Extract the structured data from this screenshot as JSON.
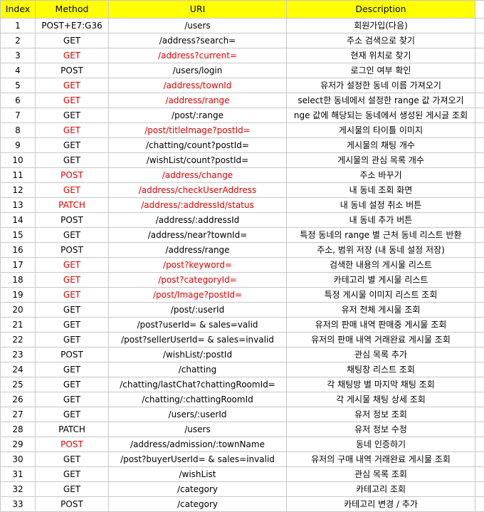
{
  "header": {
    "index": "Index",
    "method": "Method",
    "uri": "URI",
    "description": "Description"
  },
  "colors": {
    "header_bg": "#ffff00",
    "highlight_text": "#e00000",
    "grid": "#c8c8c8"
  },
  "rows": [
    {
      "index": "1",
      "method": "POST+E7:G36",
      "uri": "/users",
      "description": "회원가입(다음)",
      "red": false
    },
    {
      "index": "2",
      "method": "GET",
      "uri": "/address?search=",
      "description": "주소 검색으로 찾기",
      "red": false
    },
    {
      "index": "3",
      "method": "GET",
      "uri": "/address?current=",
      "description": "현재 위치로 찾기",
      "red": true
    },
    {
      "index": "4",
      "method": "POST",
      "uri": "/users/login",
      "description": "로그인 여부 확인",
      "red": false
    },
    {
      "index": "5",
      "method": "GET",
      "uri": "/address/townId",
      "description": "유저가 설정한 동네 이름 가져오기",
      "red": true
    },
    {
      "index": "6",
      "method": "GET",
      "uri": "/address/range",
      "description": "select한 동네에서 설정한 range 값 가져오기",
      "red": true
    },
    {
      "index": "7",
      "method": "GET",
      "uri": "/post/:range",
      "description": "nge 값에 해당되는 동네에서 생성된 게시글 조회",
      "red": false
    },
    {
      "index": "8",
      "method": "GET",
      "uri": "/post/titleImage?postId=",
      "description": "게시물의 타이틀 이미지",
      "red": true
    },
    {
      "index": "9",
      "method": "GET",
      "uri": "/chatting/count?postId=",
      "description": "게시물의 채팅 개수",
      "red": false
    },
    {
      "index": "10",
      "method": "GET",
      "uri": "/wishList/count?postId=",
      "description": "게시물의 관심 목록 개수",
      "red": false
    },
    {
      "index": "11",
      "method": "POST",
      "uri": "/address/change",
      "description": "주소 바꾸기",
      "red": true
    },
    {
      "index": "12",
      "method": "GET",
      "uri": "/address/checkUserAddress",
      "description": "내 동네 조회 화면",
      "red": true
    },
    {
      "index": "13",
      "method": "PATCH",
      "uri": "/address/:addressId/status",
      "description": "내 동네 설정 취소 버튼",
      "red": true
    },
    {
      "index": "14",
      "method": "POST",
      "uri": "/address/:addressId",
      "description": "내 동네 추가 버튼",
      "red": false
    },
    {
      "index": "15",
      "method": "GET",
      "uri": "/address/near?townId=",
      "description": "특정 동네의 range 별 근처 동네 리스트 반환",
      "red": false
    },
    {
      "index": "16",
      "method": "POST",
      "uri": "/address/range",
      "description": "주소, 범위 저장 (내 동네 설정 저장)",
      "red": false
    },
    {
      "index": "17",
      "method": "GET",
      "uri": "/post?keyword=",
      "description": "검색한 내용의 게시물 리스트",
      "red": true
    },
    {
      "index": "18",
      "method": "GET",
      "uri": "/post?categoryId=",
      "description": "카테고리 별 게시물 리스트",
      "red": true
    },
    {
      "index": "19",
      "method": "GET",
      "uri": "/post/Image?postId=",
      "description": "특정 게시물 이미지 리스트 조회",
      "red": true
    },
    {
      "index": "20",
      "method": "GET",
      "uri": "/post/:userId",
      "description": "유저 전체 게시물 조회",
      "red": false
    },
    {
      "index": "21",
      "method": "GET",
      "uri": "/post?userId= & sales=valid",
      "description": "유저의 판매 내역 판매중 게시물 조회",
      "red": false
    },
    {
      "index": "22",
      "method": "GET",
      "uri": "/post?sellerUserId= & sales=invalid",
      "description": "유저의 판매 내역 거래완료 게시물 조회",
      "red": false
    },
    {
      "index": "23",
      "method": "POST",
      "uri": "/wishList/:postId",
      "description": "관심 목록 추가",
      "red": false
    },
    {
      "index": "24",
      "method": "GET",
      "uri": "/chatting",
      "description": "채팅창 리스트 조회",
      "red": false
    },
    {
      "index": "25",
      "method": "GET",
      "uri": "/chatting/lastChat?chattingRoomId=",
      "description": "각 채팅방 별 마지막 채팅 조회",
      "red": false
    },
    {
      "index": "26",
      "method": "GET",
      "uri": "/chatting/:chattingRoomId",
      "description": "각 게시물 채팅 상세 조회",
      "red": false
    },
    {
      "index": "27",
      "method": "GET",
      "uri": "/users/:userId",
      "description": "유저 정보 조회",
      "red": false
    },
    {
      "index": "28",
      "method": "PATCH",
      "uri": "/users",
      "description": "유저 정보 수정",
      "red": false
    },
    {
      "index": "29",
      "method": "POST",
      "uri": "/address/admission/:townName",
      "description": "동네 인증하기",
      "red": true,
      "method_only_red": true
    },
    {
      "index": "30",
      "method": "GET",
      "uri": "/post?buyerUserId= & sales=invalid",
      "description": "유저의 구매 내역 거래완료 게시물 조회",
      "red": false
    },
    {
      "index": "31",
      "method": "GET",
      "uri": "/wishList",
      "description": "관심 목록 조회",
      "red": false
    },
    {
      "index": "32",
      "method": "GET",
      "uri": "/category",
      "description": "카테고리 조회",
      "red": false
    },
    {
      "index": "33",
      "method": "POST",
      "uri": "/category",
      "description": "카테고리 변경 / 추가",
      "red": false
    }
  ]
}
